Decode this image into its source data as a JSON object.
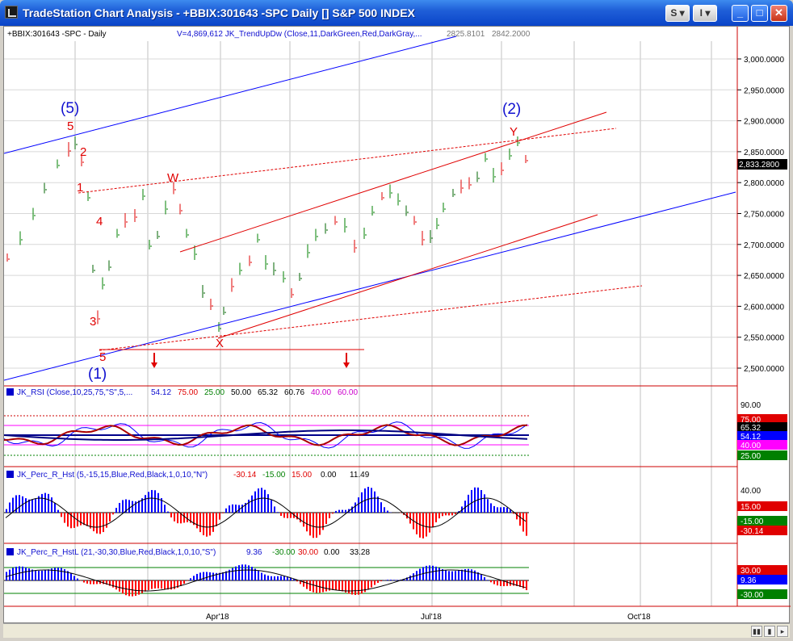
{
  "window": {
    "title": "TradeStation Chart Analysis - +BBIX:301643 -SPC Daily [] S&P 500 INDEX",
    "btn_s": "S",
    "btn_i": "I",
    "btn_min": "_",
    "btn_max": "□",
    "btn_close": "✕"
  },
  "price_panel": {
    "symbol_label": "+BBIX:301643 -SPC - Daily",
    "indicator_label": "V=4,869,612  JK_TrendUpDw (Close,11,DarkGreen,Red,DarkGray,...",
    "indicator_val1": "2825.8101",
    "indicator_val2": "2842.2000",
    "last_price": "2,833.2800",
    "y_ticks": [
      "3,000.0000",
      "2,950.0000",
      "2,900.0000",
      "2,850.0000",
      "2,800.0000",
      "2,750.0000",
      "2,700.0000",
      "2,650.0000",
      "2,600.0000",
      "2,550.0000",
      "2,500.0000"
    ],
    "wave_labels": {
      "w5_circle": "(5)",
      "w5": "5",
      "w2": "2",
      "w1": "1",
      "w4": "4",
      "w3": "3",
      "w5_low": "5",
      "w1_circle": "(1)",
      "W": "W",
      "X": "X",
      "Y": "Y",
      "w2_circle": "(2)"
    }
  },
  "rsi_panel": {
    "label": "JK_RSI (Close,10,25,75,\"S\",5,...",
    "values": [
      "54.12",
      "75.00",
      "25.00",
      "50.00",
      "65.32",
      "60.76",
      "40.00",
      "60.00"
    ],
    "y_ticks": [
      "90.00"
    ],
    "badges": [
      "75.00",
      "65.32",
      "54.12",
      "40.00",
      "25.00"
    ]
  },
  "percr1_panel": {
    "label": "JK_Perc_R_Hst (5,-15,15,Blue,Red,Black,1,0,10,\"N\")",
    "values": [
      "-30.14",
      "-15.00",
      "15.00",
      "0.00",
      "11.49"
    ],
    "y_ticks": [
      "40.00"
    ],
    "badges": [
      "15.00",
      "-15.00",
      "-30.14"
    ]
  },
  "percr2_panel": {
    "label": "JK_Perc_R_HstL (21,-30,30,Blue,Red,Black,1,0,10,\"S\")",
    "values": [
      "9.36",
      "-30.00",
      "30.00",
      "0.00",
      "33.28"
    ],
    "badges": [
      "30.00",
      "9.36",
      "-30.00"
    ]
  },
  "x_axis": {
    "labels": [
      "Apr'18",
      "Jul'18",
      "Oct'18"
    ]
  },
  "colors": {
    "blue": "#0000ff",
    "red": "#ff0000",
    "green": "#008000",
    "wave_blue": "#1010d0",
    "wave_red": "#e00000"
  }
}
